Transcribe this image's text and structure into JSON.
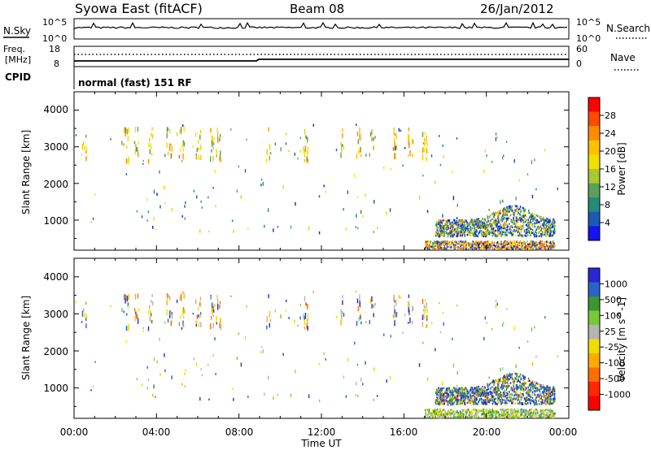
{
  "header": {
    "station": "Syowa East (fitACF)",
    "beam": "Beam 08",
    "date": "26/Jan/2012"
  },
  "status_panels": {
    "nsky_label": "N.Sky",
    "nsearch_label": "N.Search",
    "noise_ticks_left": [
      "10^5",
      "10^0"
    ],
    "noise_ticks_right": [
      "10^5",
      "10^0"
    ],
    "freq_label_1": "Freq.",
    "freq_label_2": "[MHz]",
    "freq_ticks": [
      "18",
      "8"
    ],
    "nave_label": "Nave",
    "nave_ticks": [
      "60",
      "0"
    ],
    "cpid_label": "CPID",
    "cpid_text": "normal (fast) 151 RF"
  },
  "x_axis": {
    "label": "Time UT",
    "ticks": [
      "00:00",
      "04:00",
      "08:00",
      "12:00",
      "16:00",
      "20:00",
      "00:00"
    ]
  },
  "y_axis": {
    "label": "Slant Range [km]",
    "ticks": [
      "4000",
      "3000",
      "2000",
      "1000"
    ]
  },
  "power_scale": {
    "label": "Power [dB]",
    "ticks": [
      "28",
      "24",
      "20",
      "16",
      "12",
      "8",
      "4"
    ],
    "colors": [
      "#ff0000",
      "#ff4a00",
      "#ff8c00",
      "#ffc000",
      "#f0e000",
      "#a9c832",
      "#5aa05a",
      "#238c78",
      "#1a5ab4",
      "#1414f0"
    ]
  },
  "velocity_scale": {
    "label": "Velocity [m s^-1]",
    "ticks": [
      "1000",
      "500",
      "100",
      "25",
      "-25",
      "-100",
      "-500",
      "-1000"
    ],
    "colors": [
      "#2828d2",
      "#2864c8",
      "#3c9632",
      "#78c83c",
      "#b4b4b4",
      "#f0dc00",
      "#ffaa00",
      "#ff6e00",
      "#ff2800",
      "#ff0000"
    ]
  },
  "chart_data": [
    {
      "type": "heatmap",
      "title": "Power",
      "xlabel": "Time UT",
      "ylabel": "Slant Range [km]",
      "xlim_hours": [
        0,
        24
      ],
      "ylim_km": [
        180,
        4500
      ],
      "colorbar": "Power [dB]",
      "colorbar_range": [
        0,
        32
      ],
      "sparse_column_times_h": [
        0.5,
        2.5,
        3.0,
        3.7,
        4.6,
        5.2,
        6.0,
        6.7,
        7.0,
        9.4,
        11.2,
        13.0,
        13.8,
        14.4,
        15.5,
        16.3,
        17.0
      ],
      "echo_region_1": {
        "time_h": [
          17.5,
          23.3
        ],
        "range_km": [
          550,
          1450
        ],
        "dominant_db": "8-12"
      },
      "echo_region_2": {
        "time_h": [
          17.0,
          23.3
        ],
        "range_km": [
          200,
          400
        ],
        "dominant_db": "16-28"
      }
    },
    {
      "type": "heatmap",
      "title": "Velocity",
      "xlabel": "Time UT",
      "ylabel": "Slant Range [km]",
      "xlim_hours": [
        0,
        24
      ],
      "ylim_km": [
        180,
        4500
      ],
      "colorbar": "Velocity [m s^-1]",
      "colorbar_range": [
        -1200,
        1200
      ],
      "echo_region_1": {
        "time_h": [
          17.5,
          23.3
        ],
        "range_km": [
          550,
          1450
        ],
        "dominant_ms": "500 to 1000"
      },
      "echo_region_2": {
        "time_h": [
          17.0,
          23.3
        ],
        "range_km": [
          200,
          400
        ],
        "dominant_ms": "-25 to 100"
      }
    }
  ]
}
